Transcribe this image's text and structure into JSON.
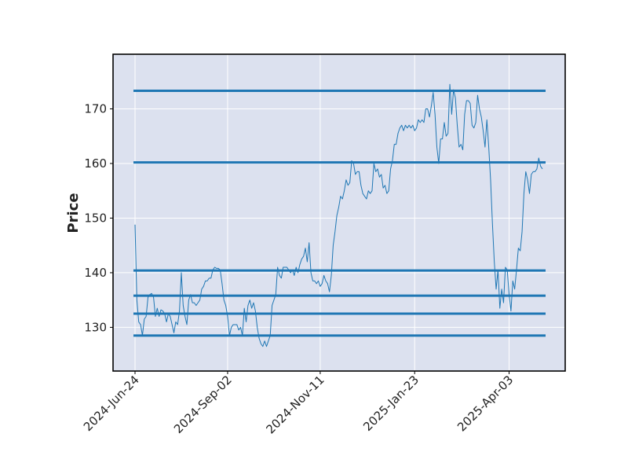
{
  "chart_data": {
    "type": "line",
    "title": "",
    "xlabel": "",
    "ylabel": "Price",
    "ylim": [
      122,
      180
    ],
    "grid": true,
    "x_tick_labels": [
      "2024-Jun-24",
      "2024-Sep-02",
      "2024-Nov-11",
      "2025-Jan-23",
      "2025-Apr-03"
    ],
    "y_ticks": [
      130,
      140,
      150,
      160,
      170
    ],
    "series": [
      {
        "values": [
          148.8,
          135.0,
          131.0,
          130.5,
          128.5,
          131.5,
          132.0,
          135.5,
          136.0,
          136.2,
          135.5,
          132.0,
          133.5,
          132.0,
          133.2,
          133.0,
          132.5,
          131.0,
          132.5,
          132.0,
          130.5,
          129.0,
          131.0,
          130.5,
          133.0,
          140.0,
          134.0,
          132.0,
          130.5,
          135.0,
          136.0,
          134.5,
          134.5,
          134.0,
          134.5,
          135.0,
          137.0,
          137.5,
          138.5,
          138.5,
          139.0,
          139.0,
          140.5,
          141.0,
          140.8,
          140.8,
          140.5,
          138.0,
          135.0,
          134.0,
          132.0,
          128.5,
          130.0,
          130.5,
          130.5,
          130.5,
          129.5,
          130.0,
          128.5,
          133.5,
          131.0,
          134.0,
          135.0,
          133.5,
          134.5,
          133.0,
          130.0,
          128.0,
          127.0,
          126.5,
          127.5,
          126.5,
          127.5,
          128.5,
          134.0,
          135.0,
          136.0,
          141.0,
          139.5,
          139.0,
          141.0,
          141.0,
          141.0,
          140.5,
          140.0,
          140.5,
          139.5,
          141.0,
          140.0,
          141.5,
          142.5,
          143.0,
          144.5,
          142.0,
          145.5,
          140.0,
          138.5,
          138.5,
          138.0,
          138.5,
          137.5,
          138.0,
          139.5,
          138.5,
          138.0,
          136.5,
          139.5,
          145.0,
          147.5,
          150.5,
          152.0,
          154.0,
          153.5,
          155.0,
          157.0,
          156.0,
          156.5,
          160.5,
          160.0,
          158.0,
          158.5,
          158.5,
          156.0,
          154.5,
          154.0,
          153.5,
          155.0,
          154.5,
          155.0,
          160.0,
          158.5,
          159.0,
          157.5,
          158.0,
          155.5,
          156.0,
          154.5,
          155.0,
          159.0,
          160.5,
          163.5,
          163.5,
          165.5,
          166.5,
          167.0,
          166.0,
          167.0,
          166.5,
          167.0,
          166.5,
          167.0,
          166.0,
          166.5,
          168.0,
          167.5,
          168.0,
          167.5,
          170.0,
          170.0,
          168.5,
          170.5,
          173.0,
          169.0,
          163.0,
          160.0,
          164.5,
          164.5,
          167.5,
          165.0,
          165.5,
          174.5,
          169.0,
          173.5,
          172.0,
          167.0,
          163.0,
          163.5,
          162.5,
          169.0,
          171.5,
          171.5,
          171.0,
          167.0,
          166.5,
          167.5,
          172.5,
          170.0,
          168.5,
          166.0,
          163.0,
          168.0,
          163.0,
          157.0,
          149.0,
          142.0,
          137.0,
          140.5,
          133.5,
          137.0,
          134.5,
          141.0,
          140.5,
          136.0,
          133.0,
          138.5,
          137.0,
          140.5,
          144.5,
          144.0,
          147.5,
          154.5,
          158.5,
          157.0,
          154.5,
          158.0,
          158.5,
          158.5,
          159.0,
          161.0,
          159.5,
          159.0
        ]
      }
    ],
    "hlines": [
      173.3,
      160.2,
      140.4,
      135.8,
      132.5,
      128.5
    ],
    "colors": {
      "plot_background": "#dce1ef",
      "grid": "#ffffff",
      "line": "#1f77b4",
      "hline": "#1f77b4",
      "frame": "#000000"
    }
  }
}
